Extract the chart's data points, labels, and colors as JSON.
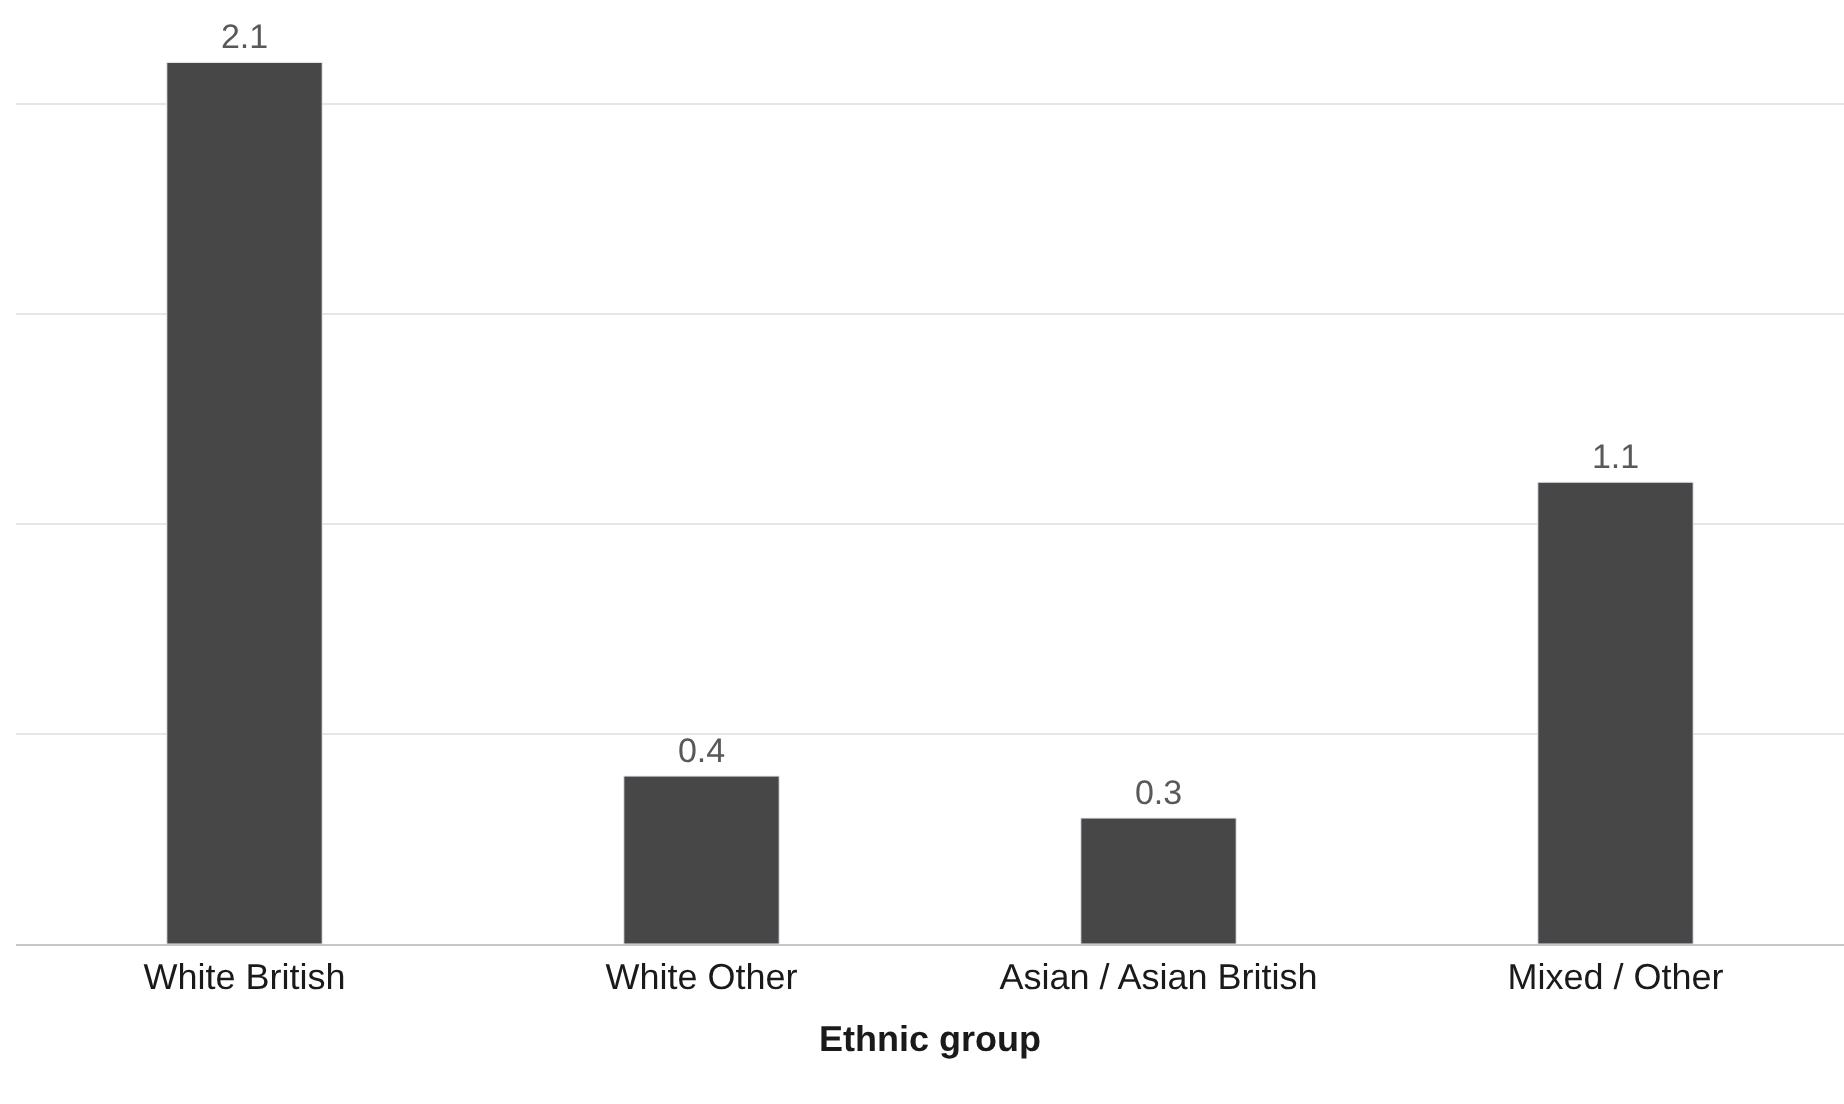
{
  "chart_data": {
    "type": "bar",
    "xlabel": "Ethnic group",
    "categories": [
      "White British",
      "White Other",
      "Asian / Asian British",
      "Mixed / Other"
    ],
    "values": [
      2.1,
      0.4,
      0.3,
      1.1
    ],
    "color": "#474747",
    "yticks": [
      {
        "value": 0,
        "label": null
      },
      {
        "value": 0.5,
        "label": null
      },
      {
        "value": 1,
        "label": null
      },
      {
        "value": 1.5,
        "label": null
      },
      {
        "value": 2,
        "label": null
      }
    ],
    "grid": "y",
    "data_labels": true,
    "tick_labels": "x",
    "legend": false
  }
}
